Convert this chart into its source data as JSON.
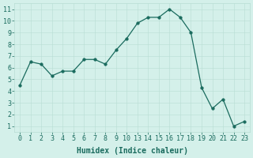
{
  "x_indices": [
    0,
    1,
    2,
    3,
    4,
    5,
    6,
    7,
    8,
    9,
    10,
    11,
    12,
    13,
    14,
    15,
    16,
    17,
    18,
    19,
    20,
    21
  ],
  "y": [
    4.5,
    6.5,
    6.3,
    5.3,
    5.7,
    5.7,
    6.7,
    6.7,
    6.3,
    7.5,
    8.5,
    9.8,
    10.3,
    10.3,
    11.0,
    10.3,
    9.0,
    4.3,
    2.5,
    3.3,
    1.0,
    1.4
  ],
  "xtick_labels": [
    "0",
    "1",
    "2",
    "3",
    "4",
    "5",
    "6",
    "7",
    "8",
    "9",
    "10",
    "13",
    "14",
    "15",
    "16",
    "17",
    "18",
    "19",
    "20",
    "21",
    "22",
    "23"
  ],
  "line_color": "#1a6b5e",
  "marker": "o",
  "marker_size": 2.5,
  "bg_color": "#d4f0ea",
  "grid_color_minor": "#c8e8e0",
  "grid_color_major": "#b8ddd4",
  "xlabel": "Humidex (Indice chaleur)",
  "xlabel_fontsize": 7,
  "tick_fontsize": 6,
  "ylim": [
    0.5,
    11.5
  ],
  "yticks": [
    1,
    2,
    3,
    4,
    5,
    6,
    7,
    8,
    9,
    10,
    11
  ],
  "axis_color": "#1a6b5e",
  "linewidth": 0.9
}
